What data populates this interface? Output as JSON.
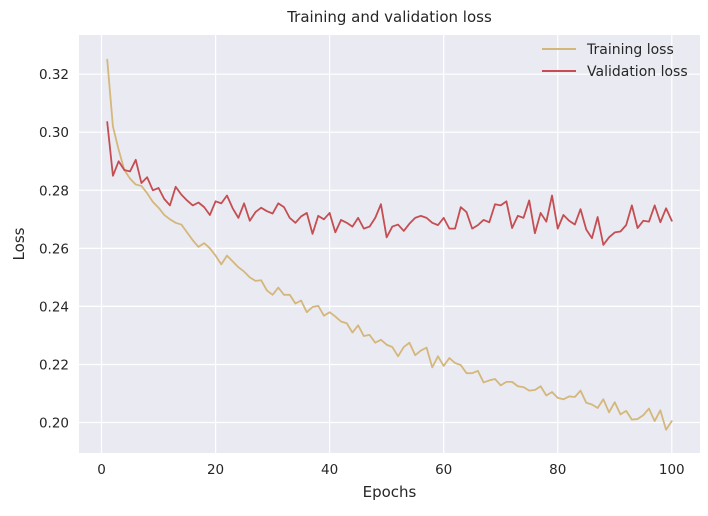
{
  "chart_data": {
    "type": "line",
    "title": "Training and validation loss",
    "xlabel": "Epochs",
    "ylabel": "Loss",
    "xlim": [
      -3.95,
      104.95
    ],
    "ylim": [
      0.1895,
      0.3335
    ],
    "xticks": [
      0,
      20,
      40,
      60,
      80,
      100
    ],
    "xtick_labels": [
      "0",
      "20",
      "40",
      "60",
      "80",
      "100"
    ],
    "yticks": [
      0.2,
      0.22,
      0.24,
      0.26,
      0.28,
      0.3,
      0.32
    ],
    "ytick_labels": [
      "0.20",
      "0.22",
      "0.24",
      "0.26",
      "0.28",
      "0.30",
      "0.32"
    ],
    "grid": true,
    "legend_position": "top-right",
    "x": [
      1,
      2,
      3,
      4,
      5,
      6,
      7,
      8,
      9,
      10,
      11,
      12,
      13,
      14,
      15,
      16,
      17,
      18,
      19,
      20,
      21,
      22,
      23,
      24,
      25,
      26,
      27,
      28,
      29,
      30,
      31,
      32,
      33,
      34,
      35,
      36,
      37,
      38,
      39,
      40,
      41,
      42,
      43,
      44,
      45,
      46,
      47,
      48,
      49,
      50,
      51,
      52,
      53,
      54,
      55,
      56,
      57,
      58,
      59,
      60,
      61,
      62,
      63,
      64,
      65,
      66,
      67,
      68,
      69,
      70,
      71,
      72,
      73,
      74,
      75,
      76,
      77,
      78,
      79,
      80,
      81,
      82,
      83,
      84,
      85,
      86,
      87,
      88,
      89,
      90,
      91,
      92,
      93,
      94,
      95,
      96,
      97,
      98,
      99,
      100
    ],
    "series": [
      {
        "name": "Training loss",
        "color": "#d4b77a",
        "values": [
          0.325,
          0.302,
          0.294,
          0.287,
          0.284,
          0.282,
          0.2815,
          0.279,
          0.276,
          0.274,
          0.2715,
          0.27,
          0.2688,
          0.2682,
          0.2655,
          0.2628,
          0.2605,
          0.2618,
          0.26,
          0.2575,
          0.2545,
          0.2575,
          0.2555,
          0.2535,
          0.252,
          0.25,
          0.2488,
          0.249,
          0.2455,
          0.244,
          0.2465,
          0.244,
          0.244,
          0.241,
          0.242,
          0.238,
          0.2398,
          0.2402,
          0.2368,
          0.238,
          0.2365,
          0.2348,
          0.2342,
          0.231,
          0.2335,
          0.2298,
          0.2302,
          0.2275,
          0.2285,
          0.2268,
          0.226,
          0.2228,
          0.226,
          0.2275,
          0.2232,
          0.2248,
          0.2258,
          0.219,
          0.2228,
          0.2195,
          0.2222,
          0.2205,
          0.2198,
          0.217,
          0.217,
          0.2178,
          0.2138,
          0.2145,
          0.215,
          0.2128,
          0.214,
          0.214,
          0.2125,
          0.2122,
          0.211,
          0.2112,
          0.2125,
          0.2093,
          0.2105,
          0.2085,
          0.208,
          0.209,
          0.2088,
          0.211,
          0.2068,
          0.2062,
          0.205,
          0.208,
          0.2035,
          0.207,
          0.2028,
          0.204,
          0.201,
          0.2012,
          0.2025,
          0.2048,
          0.2005,
          0.2042,
          0.1975,
          0.2005
        ]
      },
      {
        "name": "Validation loss",
        "color": "#c44e52",
        "values": [
          0.3035,
          0.285,
          0.29,
          0.287,
          0.2865,
          0.2905,
          0.2825,
          0.2845,
          0.28,
          0.2808,
          0.277,
          0.2748,
          0.2812,
          0.2785,
          0.2765,
          0.2748,
          0.2758,
          0.2742,
          0.2715,
          0.2762,
          0.2755,
          0.2782,
          0.2738,
          0.2705,
          0.2755,
          0.2695,
          0.2725,
          0.274,
          0.2728,
          0.272,
          0.2755,
          0.2742,
          0.2705,
          0.2688,
          0.271,
          0.2722,
          0.265,
          0.2712,
          0.27,
          0.2722,
          0.2655,
          0.2698,
          0.2688,
          0.2675,
          0.2705,
          0.2668,
          0.2675,
          0.2705,
          0.2752,
          0.2638,
          0.2675,
          0.2682,
          0.266,
          0.2685,
          0.2705,
          0.2712,
          0.2705,
          0.2688,
          0.268,
          0.2705,
          0.2668,
          0.2668,
          0.2742,
          0.2725,
          0.2668,
          0.268,
          0.2698,
          0.269,
          0.2752,
          0.2748,
          0.2762,
          0.267,
          0.2712,
          0.2705,
          0.2765,
          0.2652,
          0.2722,
          0.2692,
          0.2782,
          0.2668,
          0.2715,
          0.2695,
          0.2682,
          0.2735,
          0.2665,
          0.2635,
          0.2708,
          0.2612,
          0.2638,
          0.2655,
          0.2658,
          0.268,
          0.2748,
          0.267,
          0.2695,
          0.2692,
          0.2748,
          0.269,
          0.2738,
          0.2695
        ]
      }
    ]
  }
}
